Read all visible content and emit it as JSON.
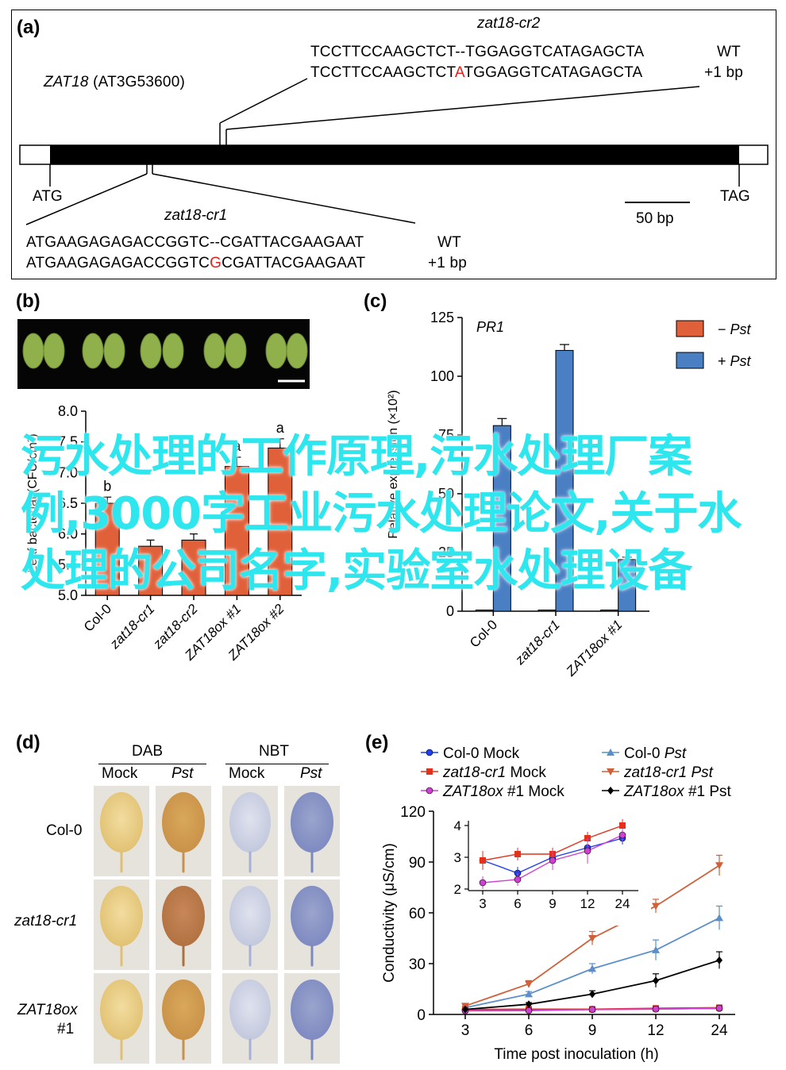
{
  "panel_a": {
    "label": "(a)",
    "gene": "ZAT18",
    "gene_id": "(AT3G53600)",
    "start": "ATG",
    "stop": "TAG",
    "scale": "50 bp",
    "cr2": {
      "name": "zat18-cr2",
      "wt_seq": "TCCTTCCAAGCTCT--TGGAGGTCATAGAGCTA",
      "mut_pre": "TCCTTCCAAGCTCT",
      "mut_ins": "A",
      "mut_post": "TGGAGGTCATAGAGCTA",
      "wt_tag": "WT",
      "mut_tag": "+1 bp"
    },
    "cr1": {
      "name": "zat18-cr1",
      "wt_seq": "ATGAAGAGAGACCGGTC--CGATTACGAAGAAT",
      "mut_pre": "ATGAAGAGAGACCGGTC",
      "mut_ins": "G",
      "mut_post": "CGATTACGAAGAAT",
      "wt_tag": "WT",
      "mut_tag": "+1 bp"
    }
  },
  "panel_b": {
    "label": "(b)",
    "ylabel": "Leaf bacterial (CFU/cm²)",
    "chart_data": {
      "type": "bar",
      "categories": [
        "Col-0",
        "zat18-cr1",
        "zat18-cr2",
        "ZAT18ox #1",
        "ZAT18ox #2"
      ],
      "values": [
        6.5,
        5.8,
        5.9,
        7.1,
        7.4
      ],
      "errors": [
        0.1,
        0.1,
        0.1,
        0.15,
        0.15
      ],
      "letters": [
        "b",
        "",
        "",
        "a",
        "a"
      ],
      "ylim": [
        5.0,
        8.0
      ],
      "yticks": [
        "5.0",
        "5.5",
        "6.0",
        "6.5",
        "7.0",
        "7.5",
        "8.0"
      ],
      "color": "#e0603a"
    }
  },
  "panel_c": {
    "label": "(c)",
    "ylabel": "Relative expression (×10²)",
    "chart_data": {
      "type": "bar",
      "title": "PR1",
      "categories": [
        "Col-0",
        "zat18-cr1",
        "ZAT18ox #1"
      ],
      "series": [
        {
          "name": "−Pst",
          "color": "#e0603a",
          "values": [
            0.5,
            0.5,
            0.5
          ]
        },
        {
          "name": "+Pst",
          "color": "#4a7fc4",
          "values": [
            79,
            111,
            22
          ]
        }
      ],
      "errors": [
        3,
        2.5,
        1
      ],
      "ylim": [
        0,
        125
      ],
      "yticks": [
        "0",
        "25",
        "50",
        "75",
        "100",
        "125"
      ]
    }
  },
  "panel_d": {
    "label": "(d)",
    "groups": [
      "DAB",
      "NBT"
    ],
    "columns": [
      "Mock",
      "Pst",
      "Mock",
      "Pst"
    ],
    "rows": [
      "Col-0",
      "zat18-cr1",
      "ZAT18ox",
      "#1"
    ]
  },
  "panel_e": {
    "label": "(e)",
    "legend": [
      {
        "plain": "Col-0 Mock",
        "ital": "",
        "rest": ""
      },
      {
        "plain": "Col-0 ",
        "ital": "Pst",
        "rest": ""
      },
      {
        "plain": "",
        "ital": "zat18-cr1",
        "rest": " Mock"
      },
      {
        "plain": "",
        "ital": "zat18-cr1 Pst",
        "rest": ""
      },
      {
        "plain": "",
        "ital": "ZAT18ox",
        "rest": " #1 Mock"
      },
      {
        "plain": "",
        "ital": "ZAT18ox",
        "rest": " #1 Pst"
      }
    ],
    "chart_data": {
      "type": "line",
      "xlabel": "Time post inoculation (h)",
      "ylabel": "Conductivity (μS/cm)",
      "x": [
        3,
        6,
        9,
        12,
        24
      ],
      "xticks": [
        "3",
        "6",
        "9",
        "12",
        "24"
      ],
      "ylim": [
        0,
        120
      ],
      "yticks": [
        "0",
        "30",
        "60",
        "90",
        "120"
      ],
      "series": [
        {
          "name": "Col-0 Mock",
          "color": "#1f3ff0",
          "marker": "circle",
          "values": [
            2.9,
            2.5,
            3.0,
            3.3,
            3.6
          ],
          "errors": [
            0.3,
            0.2,
            0.2,
            0.2,
            0.2
          ]
        },
        {
          "name": "Col-0 Pst",
          "color": "#5b8fc9",
          "marker": "triangle",
          "values": [
            4,
            12,
            27,
            38,
            57
          ],
          "errors": [
            1,
            1.5,
            3,
            6,
            7
          ]
        },
        {
          "name": "zat18-cr1 Mock",
          "color": "#e3311c",
          "marker": "square",
          "values": [
            2.9,
            3.1,
            3.1,
            3.6,
            4.0
          ],
          "errors": [
            0.3,
            0.2,
            0.2,
            0.2,
            0.2
          ]
        },
        {
          "name": "zat18-cr1 Pst",
          "color": "#d0603a",
          "marker": "triangle-down",
          "values": [
            5,
            18,
            45,
            64,
            88
          ],
          "errors": [
            1,
            2,
            4,
            4,
            6
          ]
        },
        {
          "name": "ZAT18ox #1 Mock",
          "color": "#d040d0",
          "marker": "circle",
          "values": [
            2.2,
            2.3,
            2.9,
            3.2,
            3.7
          ],
          "errors": [
            0.2,
            0.2,
            0.3,
            0.4,
            0.2
          ]
        },
        {
          "name": "ZAT18ox #1 Pst",
          "color": "#000000",
          "marker": "diamond",
          "values": [
            3,
            6,
            12,
            20,
            32
          ],
          "errors": [
            0.5,
            1,
            2,
            4,
            5
          ]
        }
      ],
      "inset": {
        "ylim": [
          2,
          4
        ],
        "yticks": [
          "2",
          "3",
          "4"
        ],
        "xticks": [
          "3",
          "6",
          "9",
          "12",
          "24"
        ]
      }
    }
  },
  "overlay_text": "污水处理的工作原理,污水处理厂案例,3000字工业污水处理论文,关于水处理的公司名字,实验室水处理设备"
}
